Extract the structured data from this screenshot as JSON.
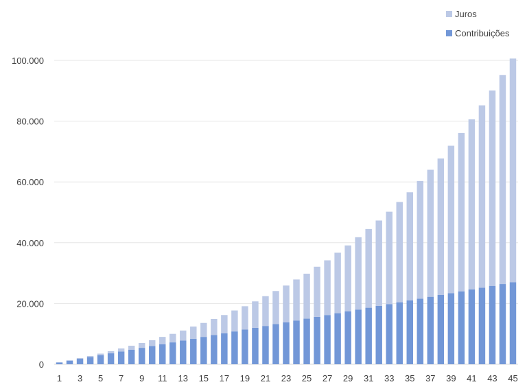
{
  "chart_data": {
    "type": "bar",
    "stacked": true,
    "categories": [
      1,
      2,
      3,
      4,
      5,
      6,
      7,
      8,
      9,
      10,
      11,
      12,
      13,
      14,
      15,
      16,
      17,
      18,
      19,
      20,
      21,
      22,
      23,
      24,
      25,
      26,
      27,
      28,
      29,
      30,
      31,
      32,
      33,
      34,
      35,
      36,
      37,
      38,
      39,
      40,
      41,
      42,
      43,
      44,
      45
    ],
    "x_tick_labels": [
      "1",
      "3",
      "5",
      "7",
      "9",
      "11",
      "13",
      "15",
      "17",
      "19",
      "21",
      "23",
      "25",
      "27",
      "29",
      "31",
      "33",
      "35",
      "37",
      "39",
      "41",
      "43",
      "45"
    ],
    "y_tick_labels": [
      "0",
      "20.000",
      "40.000",
      "60.000",
      "80.000",
      "100.000"
    ],
    "y_ticks": [
      0,
      20000,
      40000,
      60000,
      80000,
      100000
    ],
    "ylim": [
      0,
      100000
    ],
    "grid": true,
    "legend_position": "top-right",
    "series": [
      {
        "name": "Contribuições",
        "color": "#7297D7",
        "values": [
          600,
          1200,
          1800,
          2400,
          3000,
          3600,
          4200,
          4800,
          5400,
          6000,
          6600,
          7200,
          7800,
          8400,
          9000,
          9600,
          10200,
          10800,
          11400,
          12000,
          12600,
          13200,
          13800,
          14400,
          15000,
          15600,
          16200,
          16800,
          17400,
          18000,
          18600,
          19200,
          19800,
          20400,
          21000,
          21600,
          22200,
          22800,
          23400,
          24000,
          24600,
          25200,
          25800,
          26400,
          27000
        ]
      },
      {
        "name": "Juros",
        "color": "#BCC9E6",
        "values": [
          0,
          100,
          250,
          300,
          500,
          700,
          1000,
          1300,
          1600,
          1900,
          2400,
          2800,
          3300,
          4000,
          4600,
          5300,
          6000,
          6900,
          7700,
          8700,
          9800,
          10900,
          12100,
          13500,
          14800,
          16500,
          18000,
          19900,
          21700,
          23800,
          25900,
          28100,
          30400,
          33000,
          35600,
          38700,
          41800,
          44900,
          48500,
          52100,
          56000,
          60000,
          64300,
          68800,
          73600
        ]
      }
    ]
  }
}
